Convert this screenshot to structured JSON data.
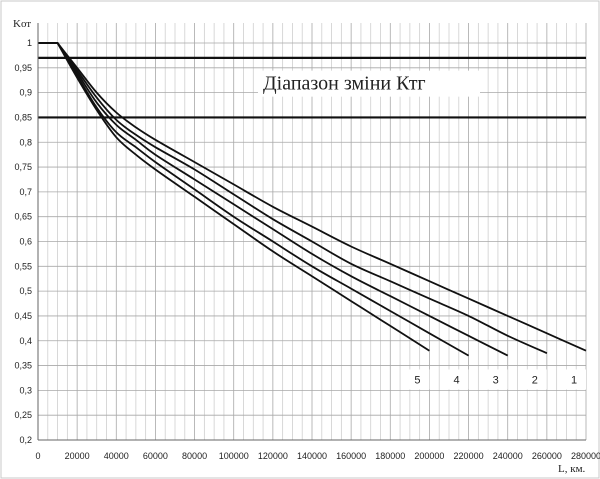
{
  "chart_data": {
    "type": "line",
    "title": "",
    "ylabel": "Kот",
    "xlabel": "L, км.",
    "xlim": [
      0,
      280000
    ],
    "ylim": [
      0.2,
      1.0
    ],
    "x_ticks": [
      0,
      20000,
      40000,
      60000,
      80000,
      100000,
      120000,
      140000,
      160000,
      180000,
      200000,
      220000,
      240000,
      260000,
      280000
    ],
    "y_ticks": [
      0.2,
      0.25,
      0.3,
      0.35,
      0.4,
      0.45,
      0.5,
      0.55,
      0.6,
      0.65,
      0.7,
      0.75,
      0.8,
      0.85,
      0.9,
      0.95,
      1.0
    ],
    "y_tick_labels": [
      "0,2",
      "0,25",
      "0,3",
      "0,35",
      "0,4",
      "0,45",
      "0,5",
      "0,55",
      "0,6",
      "0,65",
      "0,7",
      "0,75",
      "0,8",
      "0,85",
      "0,9",
      "0,95",
      "1"
    ],
    "grid": true,
    "range_band": {
      "label": "Діапазон зміни Ктг",
      "lower": 0.85,
      "upper": 0.97
    },
    "series": [
      {
        "name": "1",
        "x": [
          0,
          10000,
          20000,
          30000,
          40000,
          50000,
          60000,
          80000,
          100000,
          120000,
          140000,
          160000,
          180000,
          200000,
          220000,
          240000,
          260000,
          280000
        ],
        "y": [
          1.0,
          1.0,
          0.95,
          0.9,
          0.86,
          0.83,
          0.805,
          0.76,
          0.715,
          0.67,
          0.63,
          0.59,
          0.555,
          0.52,
          0.485,
          0.45,
          0.415,
          0.38
        ]
      },
      {
        "name": "2",
        "x": [
          0,
          10000,
          20000,
          30000,
          40000,
          50000,
          60000,
          80000,
          100000,
          120000,
          140000,
          160000,
          180000,
          200000,
          220000,
          240000,
          260000
        ],
        "y": [
          1.0,
          1.0,
          0.945,
          0.89,
          0.845,
          0.815,
          0.79,
          0.745,
          0.695,
          0.645,
          0.6,
          0.555,
          0.52,
          0.485,
          0.45,
          0.41,
          0.375
        ]
      },
      {
        "name": "3",
        "x": [
          0,
          10000,
          20000,
          30000,
          40000,
          50000,
          60000,
          80000,
          100000,
          120000,
          140000,
          160000,
          180000,
          200000,
          220000,
          240000
        ],
        "y": [
          1.0,
          1.0,
          0.94,
          0.88,
          0.835,
          0.805,
          0.775,
          0.725,
          0.675,
          0.625,
          0.575,
          0.53,
          0.49,
          0.45,
          0.41,
          0.37
        ]
      },
      {
        "name": "4",
        "x": [
          0,
          10000,
          20000,
          30000,
          40000,
          50000,
          60000,
          80000,
          100000,
          120000,
          140000,
          160000,
          180000,
          200000,
          220000
        ],
        "y": [
          1.0,
          1.0,
          0.935,
          0.87,
          0.82,
          0.79,
          0.76,
          0.705,
          0.65,
          0.6,
          0.55,
          0.505,
          0.46,
          0.415,
          0.37
        ]
      },
      {
        "name": "5",
        "x": [
          0,
          10000,
          20000,
          30000,
          40000,
          50000,
          60000,
          80000,
          100000,
          120000,
          140000,
          160000,
          180000,
          200000
        ],
        "y": [
          1.0,
          1.0,
          0.93,
          0.865,
          0.81,
          0.775,
          0.745,
          0.69,
          0.635,
          0.58,
          0.53,
          0.48,
          0.43,
          0.38
        ]
      }
    ],
    "series_label_order": [
      "5",
      "4",
      "3",
      "2",
      "1"
    ]
  }
}
